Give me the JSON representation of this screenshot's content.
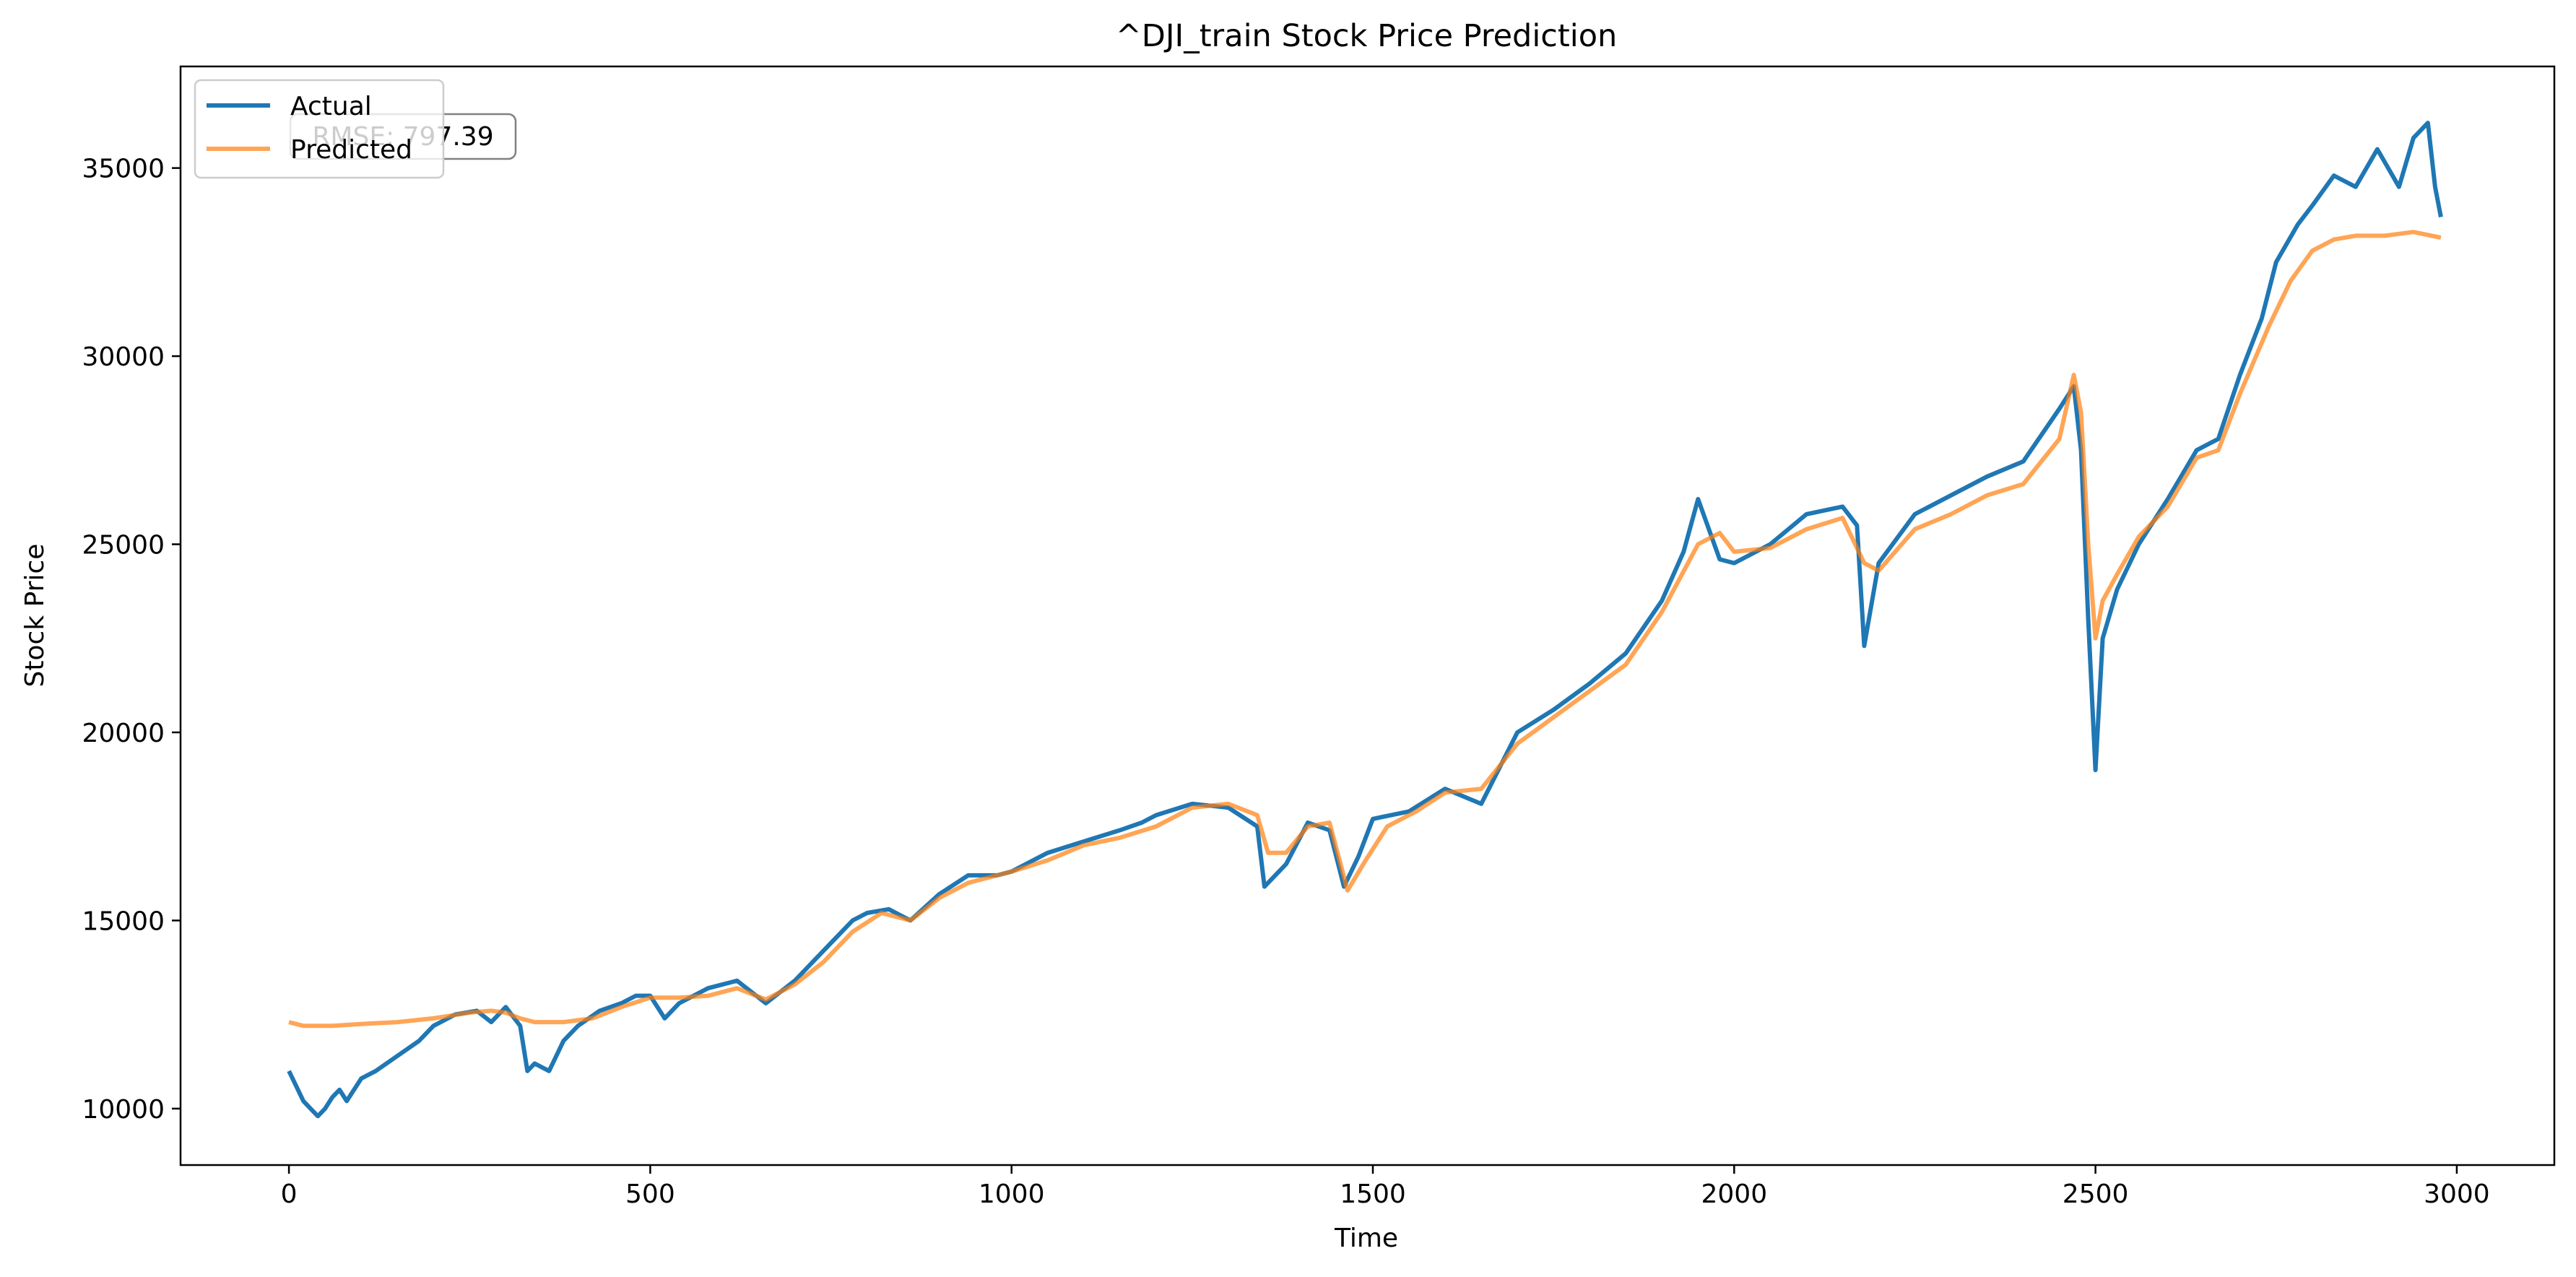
{
  "chart_data": {
    "type": "line",
    "title": "^DJI_train Stock Price Prediction",
    "xlabel": "Time",
    "ylabel": "Stock Price",
    "xlim": [
      -150,
      3135
    ],
    "ylim": [
      8500,
      37700
    ],
    "xticks": [
      0,
      500,
      1000,
      1500,
      2000,
      2500,
      3000
    ],
    "yticks": [
      10000,
      15000,
      20000,
      25000,
      30000,
      35000
    ],
    "xtick_labels": [
      "0",
      "500",
      "1000",
      "1500",
      "2000",
      "2500",
      "3000"
    ],
    "ytick_labels": [
      "10000",
      "15000",
      "20000",
      "25000",
      "30000",
      "35000"
    ],
    "grid": false,
    "legend": {
      "position": "top-left",
      "entries": [
        "Actual",
        "Predicted"
      ]
    },
    "annotation": {
      "text": "RMSE: 797.39",
      "position": "top-left"
    },
    "colors": {
      "actual": "#1f77b4",
      "predicted": "#ff7f0e"
    },
    "series": [
      {
        "name": "Actual",
        "color": "#1f77b4",
        "x": [
          0,
          10,
          20,
          30,
          40,
          50,
          60,
          70,
          80,
          100,
          120,
          150,
          180,
          200,
          230,
          260,
          280,
          300,
          320,
          330,
          340,
          360,
          380,
          400,
          430,
          460,
          480,
          500,
          520,
          540,
          580,
          620,
          660,
          700,
          740,
          780,
          800,
          830,
          860,
          900,
          940,
          980,
          1000,
          1050,
          1100,
          1150,
          1180,
          1200,
          1250,
          1300,
          1340,
          1350,
          1380,
          1410,
          1440,
          1460,
          1480,
          1500,
          1550,
          1600,
          1650,
          1700,
          1750,
          1800,
          1850,
          1900,
          1930,
          1950,
          1980,
          2000,
          2050,
          2100,
          2150,
          2170,
          2180,
          2200,
          2250,
          2300,
          2350,
          2400,
          2450,
          2470,
          2480,
          2490,
          2500,
          2510,
          2530,
          2560,
          2600,
          2640,
          2670,
          2700,
          2730,
          2750,
          2780,
          2800,
          2830,
          2860,
          2890,
          2920,
          2940,
          2960,
          2970,
          2978
        ],
        "values": [
          11000,
          10600,
          10200,
          10000,
          9800,
          10000,
          10300,
          10500,
          10200,
          10800,
          11000,
          11400,
          11800,
          12200,
          12500,
          12600,
          12300,
          12700,
          12200,
          11000,
          11200,
          11000,
          11800,
          12200,
          12600,
          12800,
          13000,
          13000,
          12400,
          12800,
          13200,
          13400,
          12800,
          13400,
          14200,
          15000,
          15200,
          15300,
          15000,
          15700,
          16200,
          16200,
          16300,
          16800,
          17100,
          17400,
          17600,
          17800,
          18100,
          18000,
          17500,
          15900,
          16500,
          17600,
          17400,
          15900,
          16700,
          17700,
          17900,
          18500,
          18100,
          20000,
          20600,
          21300,
          22100,
          23500,
          24800,
          26200,
          24600,
          24500,
          25000,
          25800,
          26000,
          25500,
          22300,
          24500,
          25800,
          26300,
          26800,
          27200,
          28600,
          29200,
          27500,
          23000,
          19000,
          22500,
          23800,
          25000,
          26200,
          27500,
          27800,
          29500,
          31000,
          32500,
          33500,
          34000,
          34800,
          34500,
          35500,
          34500,
          35800,
          36200,
          34500,
          33700
        ]
      },
      {
        "name": "Predicted",
        "color": "#ff7f0e",
        "x": [
          0,
          20,
          60,
          100,
          150,
          200,
          250,
          280,
          300,
          320,
          340,
          380,
          420,
          460,
          500,
          540,
          580,
          620,
          660,
          700,
          740,
          780,
          820,
          860,
          900,
          940,
          980,
          1000,
          1050,
          1100,
          1150,
          1200,
          1250,
          1300,
          1340,
          1355,
          1380,
          1410,
          1440,
          1465,
          1490,
          1520,
          1560,
          1600,
          1650,
          1700,
          1750,
          1800,
          1850,
          1900,
          1950,
          1980,
          2000,
          2050,
          2100,
          2150,
          2180,
          2200,
          2250,
          2300,
          2350,
          2400,
          2450,
          2470,
          2480,
          2490,
          2500,
          2510,
          2530,
          2560,
          2600,
          2640,
          2670,
          2700,
          2740,
          2770,
          2800,
          2830,
          2860,
          2900,
          2940,
          2978
        ],
        "values": [
          12300,
          12200,
          12200,
          12250,
          12300,
          12400,
          12550,
          12600,
          12550,
          12400,
          12300,
          12300,
          12400,
          12700,
          12950,
          12950,
          13000,
          13200,
          12900,
          13300,
          13900,
          14700,
          15200,
          15000,
          15600,
          16000,
          16200,
          16300,
          16600,
          17000,
          17200,
          17500,
          18000,
          18100,
          17800,
          16800,
          16800,
          17500,
          17600,
          15800,
          16600,
          17500,
          17900,
          18400,
          18500,
          19700,
          20400,
          21100,
          21800,
          23200,
          25000,
          25300,
          24800,
          24900,
          25400,
          25700,
          24500,
          24300,
          25400,
          25800,
          26300,
          26600,
          27800,
          29500,
          28500,
          25000,
          22500,
          23500,
          24200,
          25200,
          26000,
          27300,
          27500,
          29000,
          30800,
          32000,
          32800,
          33100,
          33200,
          33200,
          33300,
          33150
        ]
      }
    ]
  }
}
